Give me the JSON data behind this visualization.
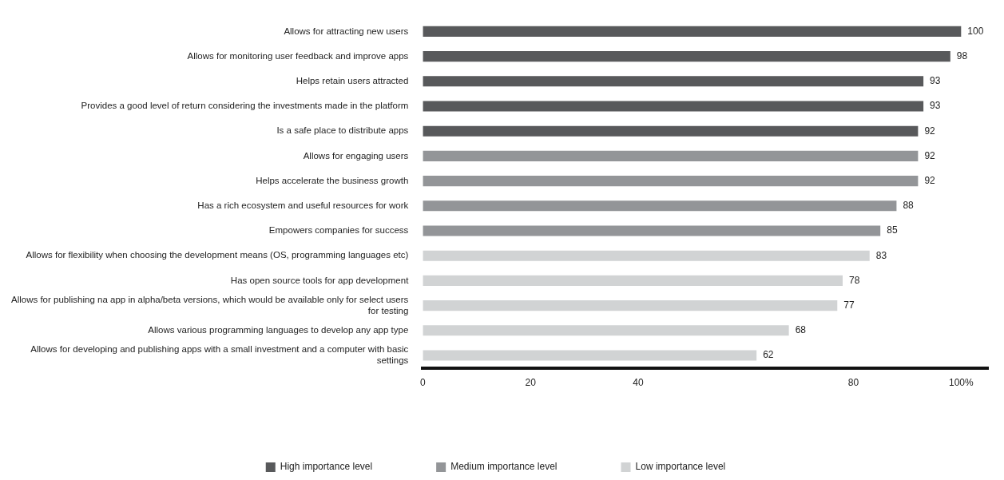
{
  "chart_data": {
    "type": "bar",
    "orientation": "horizontal",
    "data_labels": true,
    "legend": "bottom",
    "categories": [
      "Allows for attracting new users",
      "Allows for monitoring user feedback and improve apps",
      "Helps retain users attracted",
      "Provides a good level of return considering the investments made in the platform",
      "Is a safe place to distribute apps",
      "Allows for engaging users",
      "Helps accelerate the business growth",
      "Has a rich ecosystem and useful resources for work",
      "Empowers companies for success",
      "Allows for flexibility when choosing the development means (OS, programming languages etc)",
      "Has open source tools for app development",
      "Allows for publishing na app in alpha/beta versions, which would be available only for select users for testing",
      "Allows various programming languages to develop any app type",
      "Allows for developing and publishing apps with a small investment and a computer with basic settings"
    ],
    "series": [
      {
        "name": "High importance level",
        "color": "#58595b",
        "values": [
          100,
          98,
          93,
          93,
          92,
          null,
          null,
          null,
          null,
          null,
          null,
          null,
          null,
          null
        ]
      },
      {
        "name": "Medium importance level",
        "color": "#939598",
        "values": [
          null,
          null,
          null,
          null,
          null,
          92,
          92,
          88,
          85,
          null,
          null,
          null,
          null,
          null
        ]
      },
      {
        "name": "Low importance level",
        "color": "#d1d3d4",
        "values": [
          null,
          null,
          null,
          null,
          null,
          null,
          null,
          null,
          null,
          83,
          78,
          77,
          68,
          62
        ]
      }
    ],
    "xlim": [
      0,
      105
    ],
    "xticks": [
      0,
      20,
      40,
      80,
      {
        "value": 100,
        "label": "100%"
      }
    ]
  }
}
